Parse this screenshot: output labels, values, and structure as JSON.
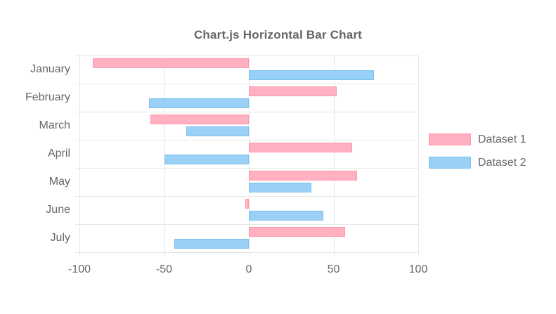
{
  "chart_data": {
    "type": "bar",
    "orientation": "horizontal",
    "title": "Chart.js Horizontal Bar Chart",
    "categories": [
      "January",
      "February",
      "March",
      "April",
      "May",
      "June",
      "July"
    ],
    "series": [
      {
        "name": "Dataset 1",
        "color_fill": "#ffb1c1",
        "color_border": "#ff6384",
        "values": [
          -92,
          52,
          -58,
          61,
          64,
          -2,
          57
        ]
      },
      {
        "name": "Dataset 2",
        "color_fill": "#9ad0f5",
        "color_border": "#36a2eb",
        "values": [
          74,
          -59,
          -37,
          -50,
          37,
          44,
          -44
        ]
      }
    ],
    "xlim": [
      -100,
      100
    ],
    "x_tick_labels": [
      "-100",
      "-50",
      "0",
      "50",
      "100"
    ],
    "grid": true,
    "legend_position": "right",
    "xlabel": "",
    "ylabel": "",
    "colors": {
      "text": "#666666",
      "grid": "#e6e6e6",
      "background": "#ffffff"
    }
  }
}
